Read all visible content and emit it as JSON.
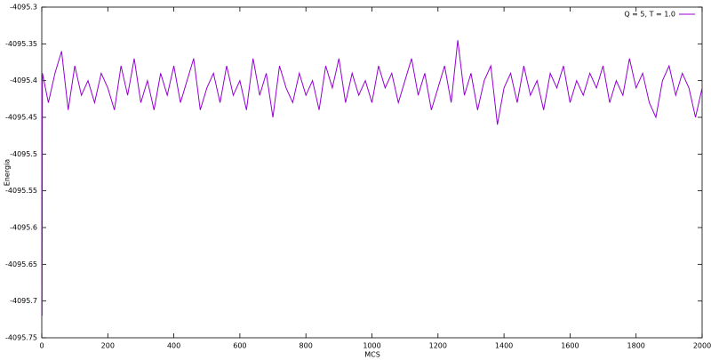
{
  "chart_data": {
    "type": "line",
    "x_label": "MCS",
    "y_label": "Energia",
    "legend": "top-right",
    "grid": false,
    "x": [
      0,
      1,
      2,
      20,
      40,
      60,
      80,
      100,
      120,
      140,
      160,
      180,
      200,
      220,
      240,
      260,
      280,
      300,
      320,
      340,
      360,
      380,
      400,
      420,
      440,
      460,
      480,
      500,
      520,
      540,
      560,
      580,
      600,
      620,
      640,
      660,
      680,
      700,
      720,
      740,
      760,
      780,
      800,
      820,
      840,
      860,
      880,
      900,
      920,
      940,
      960,
      980,
      1000,
      1020,
      1040,
      1060,
      1080,
      1100,
      1120,
      1140,
      1160,
      1180,
      1200,
      1220,
      1240,
      1260,
      1280,
      1300,
      1320,
      1340,
      1360,
      1380,
      1400,
      1420,
      1440,
      1460,
      1480,
      1500,
      1520,
      1540,
      1560,
      1580,
      1600,
      1620,
      1640,
      1660,
      1680,
      1700,
      1720,
      1740,
      1760,
      1780,
      1800,
      1820,
      1840,
      1860,
      1880,
      1900,
      1920,
      1940,
      1960,
      1980,
      2000
    ],
    "series": [
      {
        "name": "Q = 5, T = 1.0",
        "color": "#9400d3",
        "values": [
          -4095.4,
          -4095.72,
          -4095.39,
          -4095.43,
          -4095.39,
          -4095.36,
          -4095.44,
          -4095.38,
          -4095.42,
          -4095.4,
          -4095.43,
          -4095.39,
          -4095.41,
          -4095.44,
          -4095.38,
          -4095.42,
          -4095.37,
          -4095.43,
          -4095.4,
          -4095.44,
          -4095.39,
          -4095.42,
          -4095.38,
          -4095.43,
          -4095.4,
          -4095.37,
          -4095.44,
          -4095.41,
          -4095.39,
          -4095.43,
          -4095.38,
          -4095.42,
          -4095.4,
          -4095.44,
          -4095.37,
          -4095.42,
          -4095.39,
          -4095.45,
          -4095.38,
          -4095.41,
          -4095.43,
          -4095.39,
          -4095.42,
          -4095.4,
          -4095.44,
          -4095.38,
          -4095.41,
          -4095.37,
          -4095.43,
          -4095.39,
          -4095.42,
          -4095.4,
          -4095.43,
          -4095.38,
          -4095.41,
          -4095.39,
          -4095.43,
          -4095.4,
          -4095.37,
          -4095.42,
          -4095.39,
          -4095.44,
          -4095.41,
          -4095.38,
          -4095.43,
          -4095.345,
          -4095.42,
          -4095.39,
          -4095.44,
          -4095.4,
          -4095.38,
          -4095.46,
          -4095.41,
          -4095.39,
          -4095.43,
          -4095.38,
          -4095.42,
          -4095.4,
          -4095.44,
          -4095.39,
          -4095.41,
          -4095.38,
          -4095.43,
          -4095.4,
          -4095.42,
          -4095.39,
          -4095.41,
          -4095.38,
          -4095.43,
          -4095.4,
          -4095.42,
          -4095.37,
          -4095.41,
          -4095.39,
          -4095.43,
          -4095.45,
          -4095.4,
          -4095.38,
          -4095.42,
          -4095.39,
          -4095.41,
          -4095.45,
          -4095.41
        ]
      }
    ],
    "xlim": [
      0,
      2000
    ],
    "xticks": [
      0,
      200,
      400,
      600,
      800,
      1000,
      1200,
      1400,
      1600,
      1800,
      2000
    ],
    "ylim": [
      -4095.75,
      -4095.3
    ],
    "yticks": [
      -4095.75,
      -4095.7,
      -4095.65,
      -4095.6,
      -4095.55,
      -4095.5,
      -4095.45,
      -4095.4,
      -4095.35,
      -4095.3
    ]
  }
}
